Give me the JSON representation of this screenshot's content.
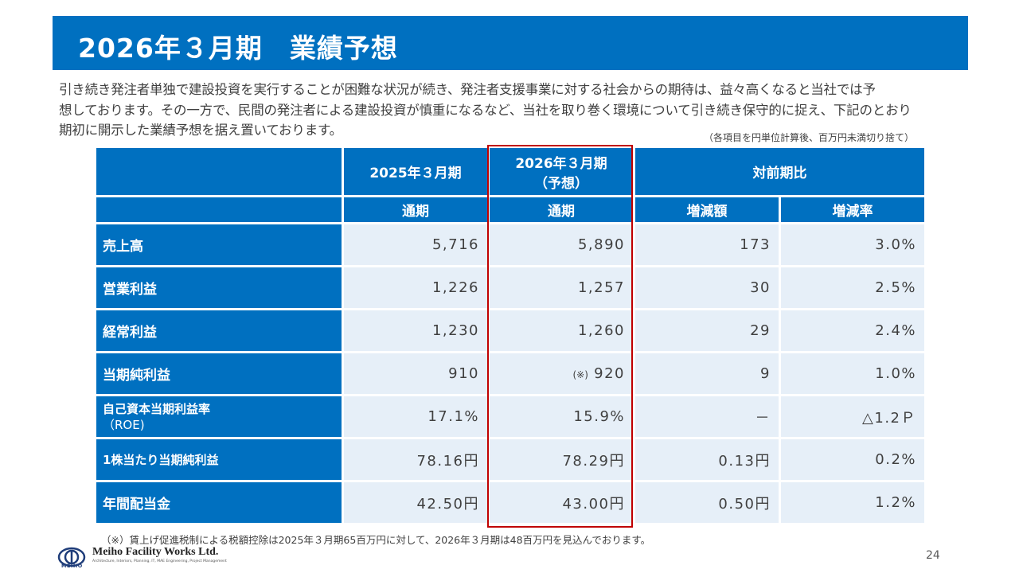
{
  "title": "2026年３月期　業績予想",
  "intro": [
    "引き続き発注者単独で建設投資を実行することが困難な状況が続き、発注者支援事業に対する社会からの期待は、益々高くなると当社では予",
    "想しております。その一方で、民間の発注者による建設投資が慎重になるなど、当社を取り巻く環境について引き続き保守的に捉え、下記のとおり",
    "期初に開示した業績予想を据え置いております。"
  ],
  "unit_note": "（各項目を円単位計算後、百万円未満切り捨て）",
  "table": {
    "header": {
      "fy2025": "2025年３月期",
      "fy2026_line1": "2026年３月期",
      "fy2026_line2": "（予想）",
      "yoy": "対前期比",
      "full_year_a": "通期",
      "full_year_b": "通期",
      "change_amount": "増減額",
      "change_rate": "増減率"
    },
    "rows": [
      {
        "label": "売上高",
        "fy2025": "5,716",
        "fy2026": "5,890",
        "change": "173",
        "rate": "3.0%"
      },
      {
        "label": "営業利益",
        "fy2025": "1,226",
        "fy2026": "1,257",
        "change": "30",
        "rate": "2.5%"
      },
      {
        "label": "経常利益",
        "fy2025": "1,230",
        "fy2026": "1,260",
        "change": "29",
        "rate": "2.4%"
      },
      {
        "label": "当期純利益",
        "fy2025": "910",
        "fy2026_note": "(※)",
        "fy2026": "920",
        "change": "9",
        "rate": "1.0%"
      },
      {
        "label_line1": "自己資本当期利益率",
        "label_line2": "（ROE)",
        "fy2025": "17.1%",
        "fy2026": "15.9%",
        "change": "－",
        "rate": "△1.2Ｐ"
      },
      {
        "label": "1株当たり当期純利益",
        "fy2025": "78.16円",
        "fy2026": "78.29円",
        "change": "0.13円",
        "rate": "0.2%"
      },
      {
        "label": "年間配当金",
        "fy2025": "42.50円",
        "fy2026": "43.00円",
        "change": "0.50円",
        "rate": "1.2%"
      }
    ]
  },
  "footnote": "（※）賃上げ促進税制による税額控除は2025年３月期65百万円に対して、2026年３月期は48百万円を見込んでおります。",
  "footer": {
    "logo_text": "MEIHO",
    "company": "Meiho Facility Works Ltd.",
    "company_sub": "Architecture, Interiors, Planning, IT, MAE Engineering, Project Management",
    "page": "24"
  },
  "colors": {
    "primary": "#0070c0",
    "cell_bg": "#e6eff8",
    "highlight": "#c00000"
  }
}
